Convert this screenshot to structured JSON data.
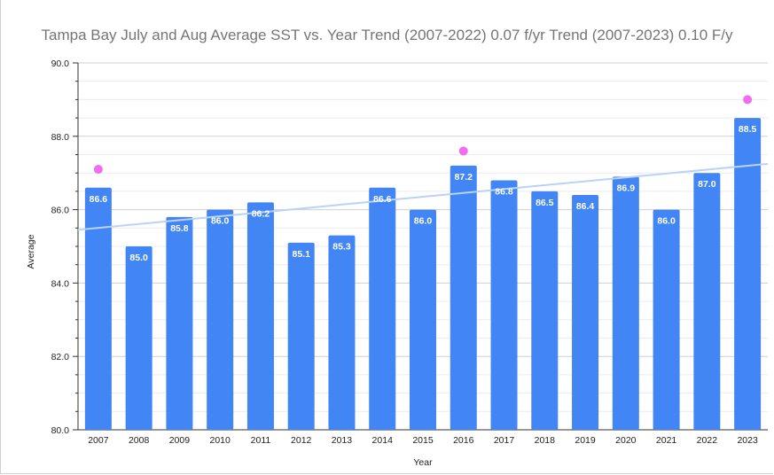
{
  "chart_data": {
    "type": "bar",
    "title": "Tampa Bay July and Aug Average SST vs. Year  Trend (2007-2022) 0.07 f/yr Trend (2007-2023) 0.10 F/y",
    "xlabel": "Year",
    "ylabel": "Average",
    "ylim": [
      80,
      90
    ],
    "yticks": [
      "80.0",
      "82.0",
      "84.0",
      "86.0",
      "88.0",
      "90.0"
    ],
    "categories": [
      "2007",
      "2008",
      "2009",
      "2010",
      "2011",
      "2012",
      "2013",
      "2014",
      "2015",
      "2016",
      "2017",
      "2018",
      "2019",
      "2020",
      "2021",
      "2022",
      "2023"
    ],
    "series": [
      {
        "values": [
          86.6,
          85.0,
          85.8,
          86.0,
          86.2,
          85.1,
          85.3,
          86.6,
          86.0,
          87.2,
          86.8,
          86.5,
          86.4,
          86.9,
          86.0,
          87.0,
          88.5
        ],
        "labels": [
          "86.6",
          "85.0",
          "85.8",
          "86.0",
          "86.2",
          "85.1",
          "85.3",
          "86.6",
          "86.0",
          "87.2",
          "86.8",
          "86.5",
          "86.4",
          "86.9",
          "86.0",
          "87.0",
          "88.5"
        ],
        "color": "#4285f4"
      }
    ],
    "markers": {
      "color": "#f06cf0",
      "points": [
        {
          "x": "2007",
          "y": 87.1
        },
        {
          "x": "2016",
          "y": 87.6
        },
        {
          "x": "2023",
          "y": 89.0
        }
      ]
    },
    "trendline": {
      "color": "#b9d3f7",
      "y_start": 85.45,
      "y_end": 87.25
    },
    "grid": true,
    "legend": "none"
  }
}
